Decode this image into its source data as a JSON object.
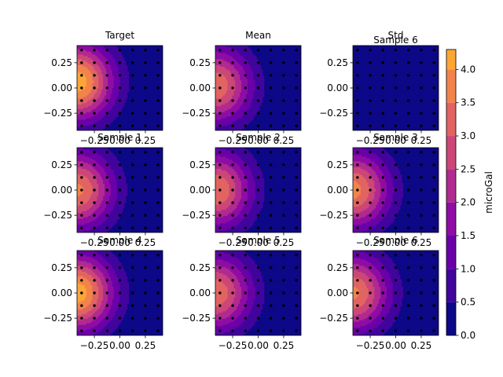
{
  "chart_data": {
    "type": "heatmap",
    "plot_style": "filled-contour",
    "colormap": "plasma",
    "x_range": [
      -0.42,
      0.42
    ],
    "y_range": [
      -0.42,
      0.42
    ],
    "x_ticks": [
      -0.25,
      0.0,
      0.25
    ],
    "x_tick_labels": [
      "−0.25",
      "0.00",
      "0.25"
    ],
    "y_ticks": [
      0.25,
      0.0,
      -0.25
    ],
    "y_tick_labels": [
      "0.25",
      "0.00",
      "−0.25"
    ],
    "sensor_grid": {
      "x": [
        -0.375,
        -0.25,
        -0.125,
        0.0,
        0.125,
        0.25,
        0.375
      ],
      "y": [
        0.375,
        0.25,
        0.125,
        0.0,
        -0.125,
        -0.25,
        -0.375
      ]
    },
    "panels": [
      {
        "title": "Target",
        "peak": 4.3,
        "peak_x": -0.42,
        "peak_y": 0.06
      },
      {
        "title": "Mean",
        "peak": 3.4,
        "peak_x": -0.42,
        "peak_y": 0.02
      },
      {
        "title": "Std",
        "peak": 0.3,
        "peak_x": -0.42,
        "peak_y": 0.0
      },
      {
        "title": "Sample 1",
        "peak": 3.6,
        "peak_x": -0.42,
        "peak_y": 0.0
      },
      {
        "title": "Sample 2",
        "peak": 3.5,
        "peak_x": -0.42,
        "peak_y": 0.0
      },
      {
        "title": "Sample 3",
        "peak": 3.7,
        "peak_x": -0.42,
        "peak_y": 0.0
      },
      {
        "title": "Sample 4",
        "peak": 4.3,
        "peak_x": -0.42,
        "peak_y": 0.0
      },
      {
        "title": "Sample 5",
        "peak": 3.4,
        "peak_x": -0.42,
        "peak_y": 0.0
      },
      {
        "title": "Sample 6",
        "peak": 3.6,
        "peak_x": -0.42,
        "peak_y": 0.0
      }
    ],
    "extra_titles": [
      {
        "title": "Sample 6",
        "attached_to": "Std"
      }
    ],
    "colorbar": {
      "label": "microGal",
      "min": 0.0,
      "max": 4.3,
      "ticks": [
        0.0,
        0.5,
        1.0,
        1.5,
        2.0,
        2.5,
        3.0,
        3.5,
        4.0
      ],
      "tick_labels": [
        "0.0",
        "0.5",
        "1.0",
        "1.5",
        "2.0",
        "2.5",
        "3.0",
        "3.5",
        "4.0"
      ]
    },
    "contour_levels": [
      0.0,
      0.5,
      1.0,
      1.5,
      2.0,
      2.5,
      3.0,
      3.5,
      4.0,
      4.5
    ],
    "level_colors": [
      "#0d0887",
      "#41049d",
      "#6a00a8",
      "#8f0da4",
      "#b12a90",
      "#cc4778",
      "#e16462",
      "#f2844b",
      "#fca636",
      "#fcce25",
      "#f0f921"
    ]
  }
}
